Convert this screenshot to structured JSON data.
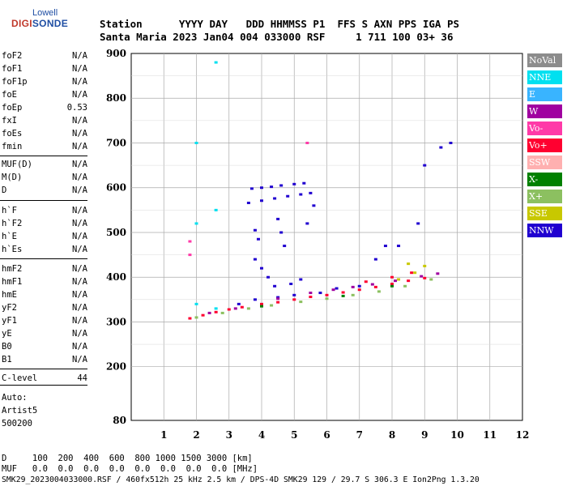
{
  "logo": {
    "top": "Lowell",
    "main_a": "DIGI",
    "main_b": "SONDE"
  },
  "header": {
    "line1": "Station      YYYY DAY   DDD HHMMSS P1  FFS S AXN PPS IGA PS",
    "line2": "Santa Maria 2023 Jan04 004 033000 RSF     1 711 100 03+ 36"
  },
  "params_group1": [
    {
      "name": "foF2",
      "value": "N/A"
    },
    {
      "name": "foF1",
      "value": "N/A"
    },
    {
      "name": "foF1p",
      "value": "N/A"
    },
    {
      "name": "foE",
      "value": "N/A"
    },
    {
      "name": "foEp",
      "value": "0.53"
    },
    {
      "name": "fxI",
      "value": "N/A"
    },
    {
      "name": "foEs",
      "value": "N/A"
    },
    {
      "name": "fmin",
      "value": "N/A"
    }
  ],
  "params_group2": [
    {
      "name": "MUF(D)",
      "value": "N/A"
    },
    {
      "name": "M(D)",
      "value": "N/A"
    },
    {
      "name": "D",
      "value": "N/A"
    }
  ],
  "params_group3": [
    {
      "name": "h`F",
      "value": "N/A"
    },
    {
      "name": "h`F2",
      "value": "N/A"
    },
    {
      "name": "h`E",
      "value": "N/A"
    },
    {
      "name": "h`Es",
      "value": "N/A"
    }
  ],
  "params_group4": [
    {
      "name": "hmF2",
      "value": "N/A"
    },
    {
      "name": "hmF1",
      "value": "N/A"
    },
    {
      "name": "hmE",
      "value": "N/A"
    },
    {
      "name": "yF2",
      "value": "N/A"
    },
    {
      "name": "yF1",
      "value": "N/A"
    },
    {
      "name": "yE",
      "value": "N/A"
    },
    {
      "name": "B0",
      "value": "N/A"
    },
    {
      "name": "B1",
      "value": "N/A"
    }
  ],
  "clevel": {
    "name": "C-level",
    "value": "44"
  },
  "auto": [
    "Auto:",
    "Artist5",
    "500200"
  ],
  "legend": [
    {
      "label": "NoVal",
      "color": "#8c8c8c"
    },
    {
      "label": "NNE",
      "color": "#00e0f0"
    },
    {
      "label": "E",
      "color": "#39b4ff"
    },
    {
      "label": "W",
      "color": "#a000a0"
    },
    {
      "label": "Vo-",
      "color": "#ff3aa8"
    },
    {
      "label": "Vo+",
      "color": "#ff0030"
    },
    {
      "label": "SSW",
      "color": "#ffb0b0"
    },
    {
      "label": "X-",
      "color": "#008000"
    },
    {
      "label": "X+",
      "color": "#8cc060"
    },
    {
      "label": "SSE",
      "color": "#c8c800"
    },
    {
      "label": "NNW",
      "color": "#2000d0"
    }
  ],
  "footer": {
    "line1": "D     100  200  400  600  800 1000 1500 3000 [km]",
    "line2": "MUF   0.0  0.0  0.0  0.0  0.0  0.0  0.0  0.0 [MHz]",
    "line3": "SMK29_2023004033000.RSF / 460fx512h 25 kHz 2.5 km / DPS-4D SMK29 129 / 29.7 S 306.3 E Ion2Png 1.3.20"
  },
  "chart_data": {
    "type": "scatter",
    "title": "",
    "xlabel": "",
    "ylabel": "",
    "xlim": [
      0,
      12
    ],
    "ylim": [
      80,
      900
    ],
    "x_ticks": [
      1,
      2,
      3,
      4,
      5,
      6,
      7,
      8,
      9,
      10,
      11,
      12
    ],
    "y_ticks": [
      80,
      200,
      300,
      400,
      500,
      600,
      700,
      800,
      900
    ],
    "grid": true,
    "series": [
      {
        "name": "NNW",
        "color": "#2000d0",
        "points": [
          [
            3.7,
            598
          ],
          [
            4.0,
            600
          ],
          [
            4.3,
            602
          ],
          [
            4.6,
            605
          ],
          [
            5.0,
            608
          ],
          [
            5.3,
            610
          ],
          [
            3.6,
            566
          ],
          [
            4.0,
            571
          ],
          [
            4.4,
            576
          ],
          [
            4.8,
            581
          ],
          [
            5.2,
            585
          ],
          [
            5.5,
            588
          ],
          [
            4.6,
            500
          ],
          [
            4.7,
            470
          ],
          [
            3.8,
            505
          ],
          [
            3.9,
            485
          ],
          [
            4.5,
            530
          ],
          [
            5.4,
            520
          ],
          [
            5.6,
            560
          ],
          [
            3.8,
            440
          ],
          [
            4.0,
            420
          ],
          [
            4.2,
            400
          ],
          [
            4.4,
            380
          ],
          [
            4.9,
            385
          ],
          [
            5.2,
            395
          ],
          [
            3.3,
            340
          ],
          [
            3.8,
            350
          ],
          [
            4.5,
            355
          ],
          [
            5.0,
            360
          ],
          [
            5.8,
            365
          ],
          [
            6.3,
            375
          ],
          [
            7.0,
            380
          ],
          [
            7.5,
            440
          ],
          [
            7.8,
            470
          ],
          [
            8.2,
            470
          ],
          [
            8.8,
            520
          ],
          [
            9.0,
            650
          ],
          [
            9.5,
            690
          ],
          [
            9.8,
            700
          ]
        ]
      },
      {
        "name": "Vo+",
        "color": "#ff0030",
        "points": [
          [
            1.8,
            308
          ],
          [
            2.2,
            315
          ],
          [
            2.6,
            322
          ],
          [
            3.0,
            328
          ],
          [
            3.4,
            333
          ],
          [
            4.0,
            340
          ],
          [
            4.5,
            344
          ],
          [
            5.0,
            350
          ],
          [
            5.5,
            356
          ],
          [
            6.0,
            360
          ],
          [
            6.5,
            366
          ],
          [
            7.0,
            372
          ],
          [
            7.5,
            378
          ],
          [
            8.0,
            385
          ],
          [
            8.5,
            392
          ],
          [
            9.0,
            398
          ],
          [
            7.2,
            390
          ],
          [
            8.0,
            400
          ],
          [
            8.6,
            410
          ]
        ]
      },
      {
        "name": "W",
        "color": "#a000a0",
        "points": [
          [
            2.4,
            320
          ],
          [
            3.2,
            330
          ],
          [
            4.5,
            352
          ],
          [
            5.5,
            365
          ],
          [
            6.2,
            372
          ],
          [
            6.8,
            378
          ],
          [
            7.4,
            384
          ],
          [
            8.1,
            392
          ],
          [
            8.9,
            402
          ],
          [
            9.4,
            408
          ]
        ]
      },
      {
        "name": "X+",
        "color": "#8cc060",
        "points": [
          [
            2.0,
            310
          ],
          [
            2.8,
            320
          ],
          [
            3.6,
            330
          ],
          [
            4.3,
            337
          ],
          [
            5.2,
            345
          ],
          [
            6.0,
            352
          ],
          [
            6.8,
            360
          ],
          [
            7.6,
            368
          ],
          [
            8.4,
            380
          ],
          [
            9.2,
            395
          ]
        ]
      },
      {
        "name": "SSE",
        "color": "#c8c800",
        "points": [
          [
            8.2,
            395
          ],
          [
            8.7,
            410
          ],
          [
            9.0,
            425
          ],
          [
            8.5,
            430
          ]
        ]
      },
      {
        "name": "NNE",
        "color": "#00e0f0",
        "points": [
          [
            2.0,
            700
          ],
          [
            2.0,
            520
          ],
          [
            2.6,
            550
          ],
          [
            2.6,
            880
          ],
          [
            2.0,
            340
          ],
          [
            2.6,
            330
          ]
        ]
      },
      {
        "name": "Vo-",
        "color": "#ff3aa8",
        "points": [
          [
            1.8,
            480
          ],
          [
            1.8,
            450
          ],
          [
            5.4,
            700
          ]
        ]
      },
      {
        "name": "X-",
        "color": "#008000",
        "points": [
          [
            4.0,
            335
          ],
          [
            6.5,
            358
          ],
          [
            8.0,
            380
          ]
        ]
      }
    ]
  }
}
